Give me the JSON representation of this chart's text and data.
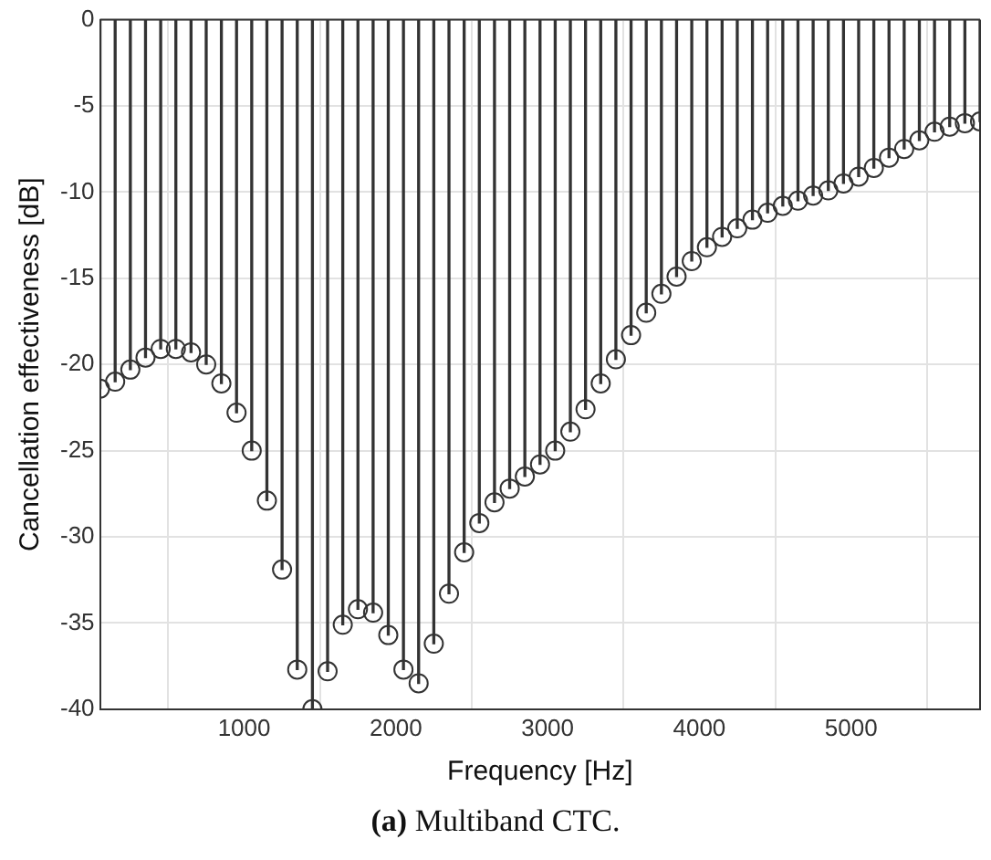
{
  "chart_data": {
    "type": "lollipop",
    "xlabel": "Frequency [Hz]",
    "ylabel": "Cancellation effectiveness [dB]",
    "annotations": [
      "(a) Multiband CTC."
    ],
    "x": [
      50,
      150,
      250,
      350,
      450,
      550,
      650,
      750,
      850,
      950,
      1050,
      1150,
      1250,
      1350,
      1450,
      1550,
      1650,
      1750,
      1850,
      1950,
      2050,
      2150,
      2250,
      2350,
      2450,
      2550,
      2650,
      2750,
      2850,
      2950,
      3050,
      3150,
      3250,
      3350,
      3450,
      3550,
      3650,
      3750,
      3850,
      3950,
      4050,
      4150,
      4250,
      4350,
      4450,
      4550,
      4650,
      4750,
      4850,
      4950,
      5050,
      5150,
      5250,
      5350,
      5450,
      5550,
      5650,
      5750,
      5850
    ],
    "series": [
      {
        "color": "#333333",
        "values": [
          -21.4,
          -21.0,
          -20.3,
          -19.6,
          -19.1,
          -19.1,
          -19.3,
          -20.0,
          -21.1,
          -22.8,
          -25.0,
          -27.9,
          -31.9,
          -37.7,
          -40,
          -37.8,
          -35.1,
          -34.2,
          -34.4,
          -35.7,
          -37.7,
          -38.5,
          -36.2,
          -33.3,
          -30.9,
          -29.2,
          -28.0,
          -27.2,
          -26.5,
          -25.8,
          -25.0,
          -23.9,
          -22.6,
          -21.1,
          -19.7,
          -18.3,
          -17.0,
          -15.9,
          -14.9,
          -14.0,
          -13.2,
          -12.6,
          -12.1,
          -11.6,
          -11.2,
          -10.8,
          -10.5,
          -10.2,
          -9.9,
          -9.5,
          -9.1,
          -8.6,
          -8.0,
          -7.5,
          -7.0,
          -6.5,
          -6.2,
          -6.0,
          -5.9
        ]
      }
    ],
    "xlim": [
      50,
      5850
    ],
    "xticks": [
      1000,
      2000,
      3000,
      4000,
      5000
    ],
    "ylim": [
      -40,
      0
    ],
    "yticks": [
      0,
      -5,
      -10,
      -15,
      -20,
      -25,
      -30,
      -35,
      -40
    ],
    "grid": true,
    "marker": "circle",
    "legend": false
  }
}
